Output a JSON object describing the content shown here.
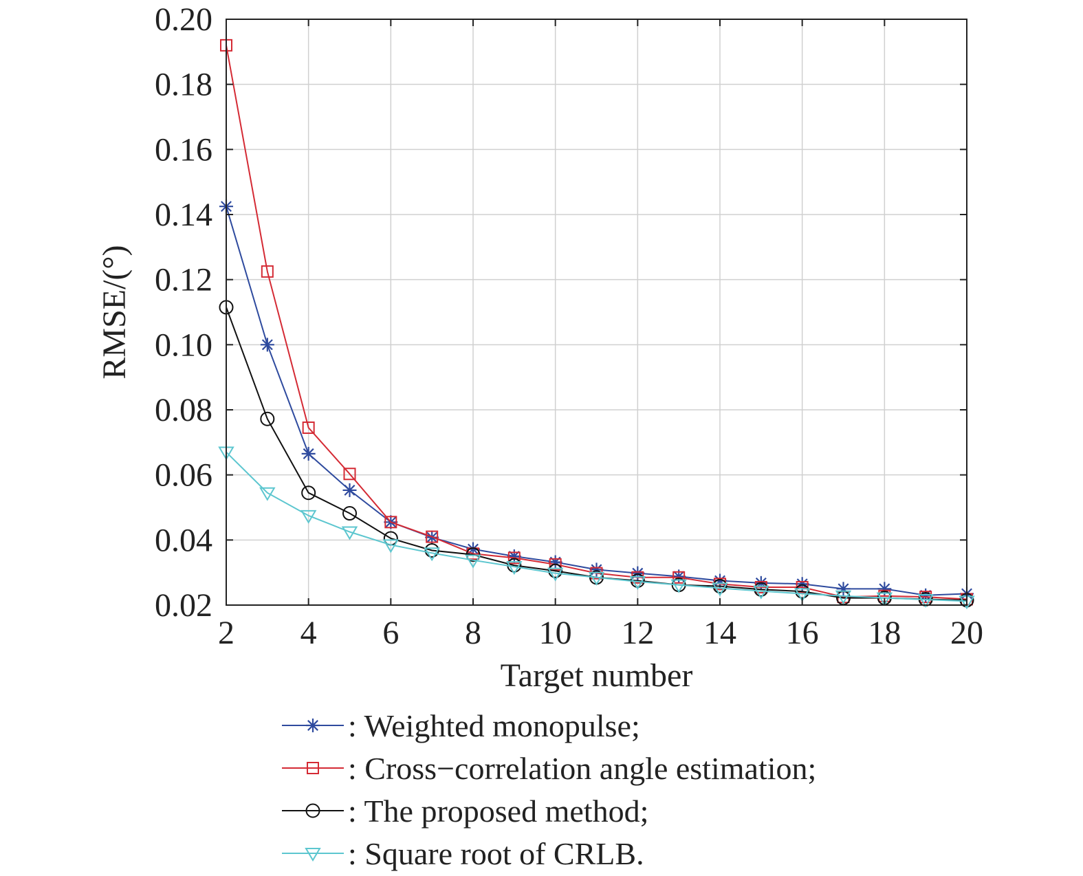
{
  "chart_data": {
    "type": "line",
    "title": "",
    "xlabel": "Target number",
    "ylabel": "RMSE/(°)",
    "xlim": [
      2,
      20
    ],
    "ylim": [
      0.02,
      0.2
    ],
    "xticks": [
      2,
      4,
      6,
      8,
      10,
      12,
      14,
      16,
      18,
      20
    ],
    "yticks": [
      0.02,
      0.04,
      0.06,
      0.08,
      0.1,
      0.12,
      0.14,
      0.16,
      0.18,
      0.2
    ],
    "ytick_labels": [
      "0.02",
      "0.04",
      "0.06",
      "0.08",
      "0.10",
      "0.12",
      "0.14",
      "0.16",
      "0.18",
      "0.20"
    ],
    "grid": true,
    "legend_position": "bottom",
    "x": [
      2,
      3,
      4,
      5,
      6,
      7,
      8,
      9,
      10,
      11,
      12,
      13,
      14,
      15,
      16,
      17,
      18,
      19,
      20
    ],
    "series": [
      {
        "name": ": Weighted monopulse;",
        "color": "#2e4a9e",
        "marker": "asterisk",
        "values": [
          0.1425,
          0.1,
          0.0665,
          0.0553,
          0.0455,
          0.0408,
          0.0372,
          0.035,
          0.0332,
          0.0309,
          0.0298,
          0.0288,
          0.0275,
          0.0268,
          0.0265,
          0.025,
          0.025,
          0.023,
          0.0235
        ]
      },
      {
        "name": ": Cross−correlation angle estimation;",
        "color": "#d42a34",
        "marker": "square",
        "values": [
          0.192,
          0.1225,
          0.0745,
          0.0603,
          0.0455,
          0.041,
          0.0358,
          0.0345,
          0.0325,
          0.0298,
          0.0285,
          0.0285,
          0.0265,
          0.0255,
          0.0255,
          0.0225,
          0.0228,
          0.0225,
          0.0218
        ]
      },
      {
        "name": ": The proposed method;",
        "color": "#111111",
        "marker": "circle",
        "values": [
          0.1115,
          0.0772,
          0.0545,
          0.0482,
          0.0405,
          0.0368,
          0.0355,
          0.0322,
          0.0305,
          0.0285,
          0.0275,
          0.0262,
          0.0258,
          0.0248,
          0.0242,
          0.0222,
          0.0222,
          0.0218,
          0.0215
        ]
      },
      {
        "name": ": Square root of CRLB.",
        "color": "#5cc6cf",
        "marker": "triangle-down",
        "values": [
          0.067,
          0.0545,
          0.0475,
          0.0425,
          0.0385,
          0.036,
          0.0338,
          0.0318,
          0.0298,
          0.0285,
          0.0272,
          0.0262,
          0.0252,
          0.0243,
          0.0235,
          0.0228,
          0.0222,
          0.0217,
          0.0212
        ]
      }
    ]
  }
}
